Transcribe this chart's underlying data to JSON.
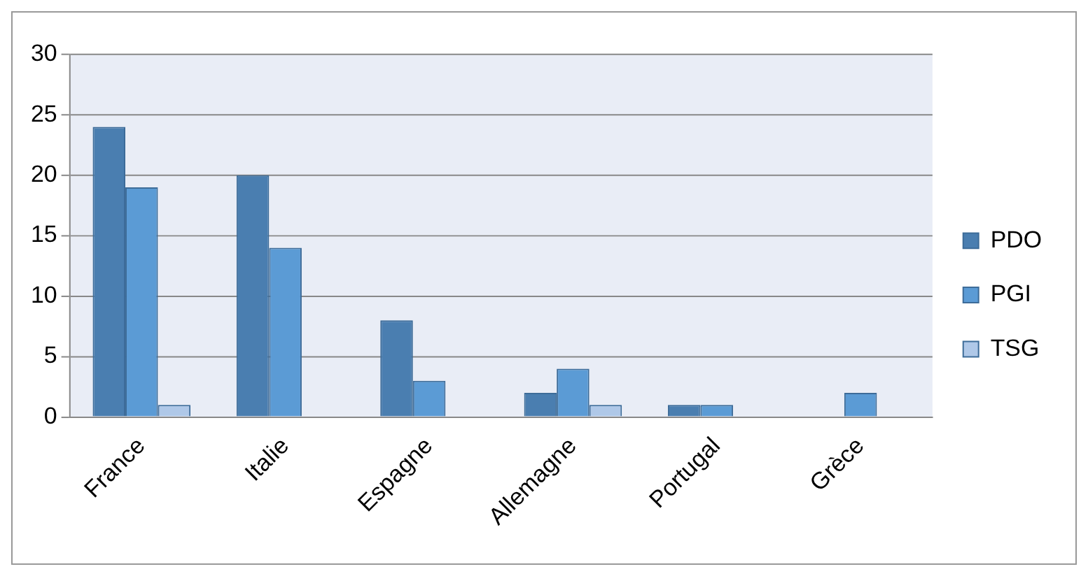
{
  "chart_data": {
    "type": "bar",
    "categories": [
      "France",
      "Italie",
      "Espagne",
      "Allemagne",
      "Portugal",
      "Grèce"
    ],
    "series": [
      {
        "name": "PDO",
        "color": "#4a7eb0",
        "values": [
          24,
          20,
          8,
          2,
          1,
          0
        ]
      },
      {
        "name": "PGI",
        "color": "#5b9bd5",
        "values": [
          19,
          14,
          3,
          4,
          1,
          2
        ]
      },
      {
        "name": "TSG",
        "color": "#afc8e8",
        "values": [
          1,
          0,
          0,
          1,
          0,
          0
        ]
      }
    ],
    "ylim": [
      0,
      30
    ],
    "yticks": [
      0,
      5,
      10,
      15,
      20,
      25,
      30
    ],
    "grid": "y",
    "legend": "right"
  }
}
